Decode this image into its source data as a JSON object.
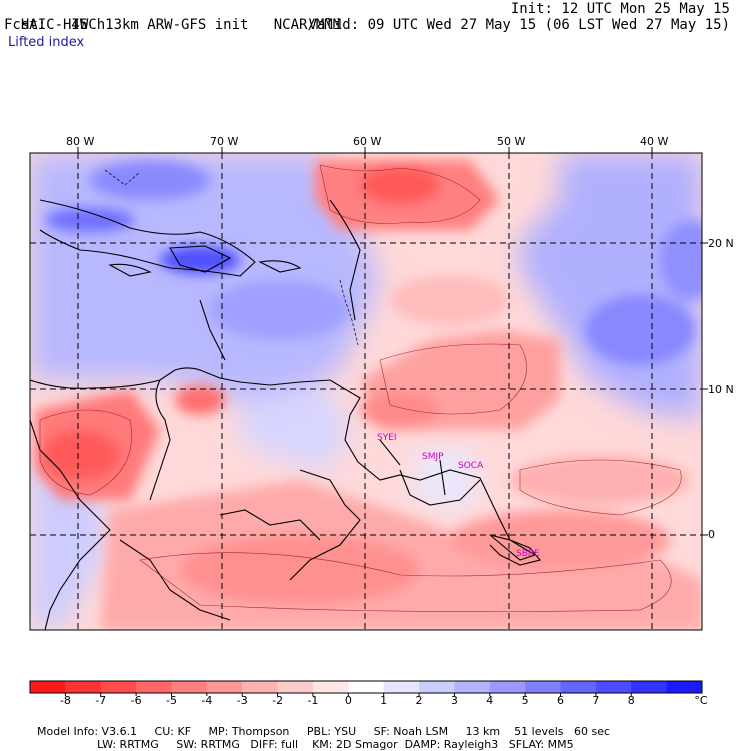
{
  "header": {
    "model_title": "HAIC-HIWC 13km ARW-GFS init",
    "institution": "NCAR/MMM",
    "init": "Init: 12 UTC Mon 25 May 15",
    "forecast": "Fcst:   45 h",
    "valid": "Valid: 09 UTC Wed 27 May 15 (06 LST Wed 27 May 15)",
    "field": "Lifted index"
  },
  "map": {
    "longitude_labels": [
      "80 W",
      "70 W",
      "60 W",
      "50 W",
      "40 W"
    ],
    "latitude_labels": [
      "20 N",
      "10 N",
      "0"
    ],
    "stations": [
      {
        "code": "SYEI"
      },
      {
        "code": "SMJP"
      },
      {
        "code": "SOCA"
      },
      {
        "code": "SBBE"
      }
    ]
  },
  "colorbar": {
    "ticks": [
      "-8",
      "-7",
      "-6",
      "-5",
      "-4",
      "-3",
      "-2",
      "-1",
      "0",
      "1",
      "2",
      "3",
      "4",
      "5",
      "6",
      "7",
      "8"
    ],
    "unit": "°C",
    "colors": [
      "#ff1a1a",
      "#ff3333",
      "#ff4d4d",
      "#ff6666",
      "#ff8080",
      "#ff9999",
      "#ffb3b3",
      "#ffcccc",
      "#ffe6e6",
      "#ffffff",
      "#e6e6ff",
      "#ccccff",
      "#b3b3ff",
      "#9999ff",
      "#8080ff",
      "#6666ff",
      "#4d4dff",
      "#3333ff",
      "#1a1aff"
    ]
  },
  "footer": {
    "line1": [
      "Model Info: V3.6.1",
      "CU: KF",
      "MP: Thompson",
      "PBL: YSU",
      "SF: Noah LSM",
      "13 km",
      "51 levels",
      "60 sec"
    ],
    "line2": [
      "LW: RRTMG",
      "SW: RRTMG",
      "DIFF: full",
      "KM: 2D Smagor",
      "DAMP: Rayleigh3",
      "SFLAY: MM5"
    ]
  }
}
